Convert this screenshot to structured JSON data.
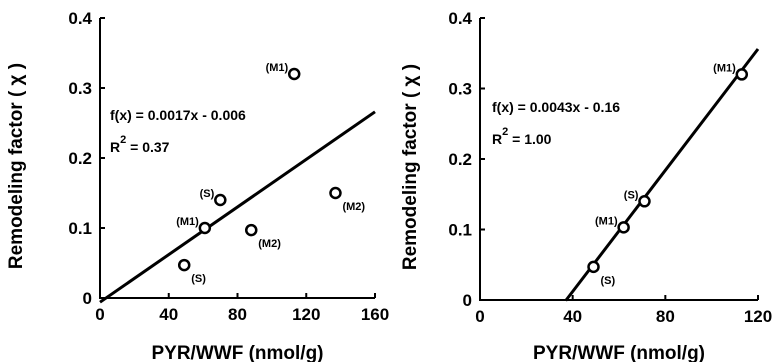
{
  "chart_data": [
    {
      "type": "scatter",
      "xlabel": "PYR/WWF (nmol/g)",
      "ylabel": "Remodeling factor",
      "ylabel_symbol": "( χ )",
      "xlim": [
        0,
        160
      ],
      "ylim": [
        0,
        0.4
      ],
      "xticks": [
        0,
        40,
        80,
        120,
        160
      ],
      "yticks": [
        0,
        0.1,
        0.2,
        0.3,
        0.4
      ],
      "xtick_labels": [
        "0",
        "40",
        "80",
        "120",
        "160"
      ],
      "ytick_labels": [
        "0",
        "0.1",
        "0.2",
        "0.3",
        "0.4"
      ],
      "points": [
        {
          "x": 113,
          "y": 0.32,
          "label": "(M1)",
          "label_pos": "left-above"
        },
        {
          "x": 70,
          "y": 0.14,
          "label": "(S)",
          "label_pos": "left-above"
        },
        {
          "x": 137,
          "y": 0.15,
          "label": "(M2)",
          "label_pos": "right-below"
        },
        {
          "x": 61,
          "y": 0.1,
          "label": "(M1)",
          "label_pos": "left-above"
        },
        {
          "x": 88,
          "y": 0.097,
          "label": "(M2)",
          "label_pos": "right-below"
        },
        {
          "x": 49,
          "y": 0.047,
          "label": "(S)",
          "label_pos": "right-below"
        }
      ],
      "fit": {
        "slope": 0.0017,
        "intercept": -0.006,
        "x_range": [
          0,
          160
        ]
      },
      "equation": "f(x) = 0.0017x - 0.006",
      "r2_prefix": "R",
      "r2_sup": "2",
      "r2_value": " = 0.37"
    },
    {
      "type": "scatter",
      "xlabel": "PYR/WWF (nmol/g)",
      "ylabel": "Remodeling factor",
      "ylabel_symbol": "( χ )",
      "xlim": [
        0,
        120
      ],
      "ylim": [
        0,
        0.4
      ],
      "xticks": [
        0,
        40,
        80,
        120
      ],
      "yticks": [
        0,
        0.1,
        0.2,
        0.3,
        0.4
      ],
      "xtick_labels": [
        "0",
        "40",
        "80",
        "120"
      ],
      "ytick_labels": [
        "0",
        "0.1",
        "0.2",
        "0.3",
        "0.4"
      ],
      "points": [
        {
          "x": 113,
          "y": 0.32,
          "label": "(M1)",
          "label_pos": "left-above"
        },
        {
          "x": 71,
          "y": 0.14,
          "label": "(S)",
          "label_pos": "left-above"
        },
        {
          "x": 62,
          "y": 0.103,
          "label": "(M1)",
          "label_pos": "left-above"
        },
        {
          "x": 49,
          "y": 0.047,
          "label": "(S)",
          "label_pos": "right-below"
        }
      ],
      "fit": {
        "slope": 0.0043,
        "intercept": -0.16,
        "x_range": [
          37,
          120
        ]
      },
      "equation": "f(x) = 0.0043x - 0.16",
      "r2_prefix": "R",
      "r2_sup": "2",
      "r2_value": " = 1.00"
    }
  ]
}
